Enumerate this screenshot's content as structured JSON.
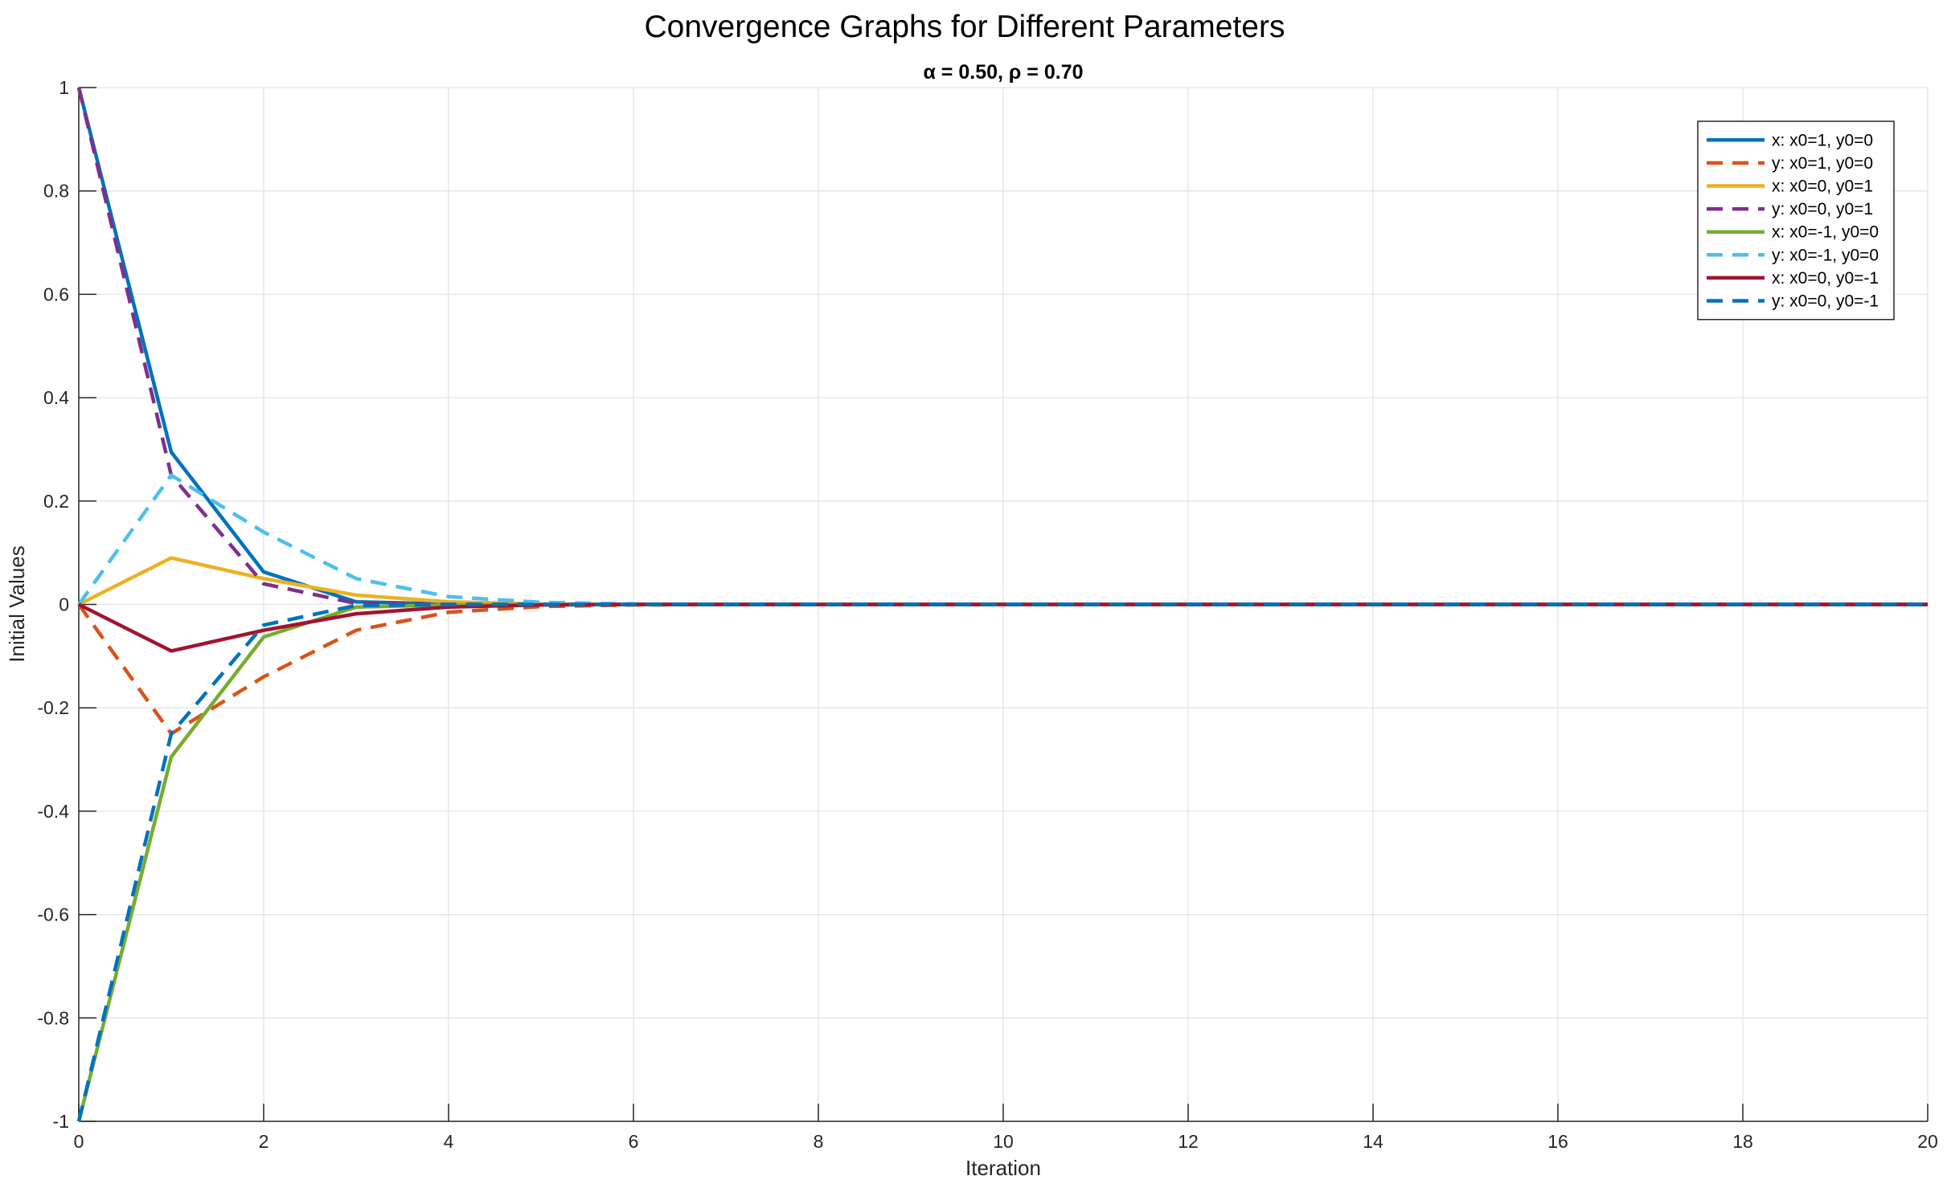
{
  "chart_data": {
    "type": "line",
    "title": "Convergence Graphs for Different Parameters",
    "subtitle": "α = 0.50, ρ = 0.70",
    "xlabel": "Iteration",
    "ylabel": "Initial Values",
    "xlim": [
      0,
      20
    ],
    "ylim": [
      -1,
      1
    ],
    "xticks": [
      0,
      2,
      4,
      6,
      8,
      10,
      12,
      14,
      16,
      18,
      20
    ],
    "yticks": [
      -1,
      -0.8,
      -0.6,
      -0.4,
      -0.2,
      0,
      0.2,
      0.4,
      0.6,
      0.8,
      1
    ],
    "grid": true,
    "legend_position": "top-right",
    "x": [
      0,
      1,
      2,
      3,
      4,
      5,
      6,
      7,
      8,
      9,
      10,
      11,
      12,
      13,
      14,
      15,
      16,
      17,
      18,
      19,
      20
    ],
    "series": [
      {
        "name": "x: x0=1, y0=0",
        "color": "#0072BD",
        "style": "solid",
        "values": [
          1,
          0.295,
          0.063,
          0.005,
          0.001,
          0,
          0,
          0,
          0,
          0,
          0,
          0,
          0,
          0,
          0,
          0,
          0,
          0,
          0,
          0,
          0
        ]
      },
      {
        "name": "y: x0=1, y0=0",
        "color": "#D95319",
        "style": "dashed",
        "values": [
          0,
          -0.25,
          -0.14,
          -0.05,
          -0.015,
          -0.004,
          -0.001,
          0,
          0,
          0,
          0,
          0,
          0,
          0,
          0,
          0,
          0,
          0,
          0,
          0,
          0
        ]
      },
      {
        "name": "x: x0=0, y0=1",
        "color": "#EDB120",
        "style": "solid",
        "values": [
          0,
          0.09,
          0.05,
          0.018,
          0.005,
          0.001,
          0,
          0,
          0,
          0,
          0,
          0,
          0,
          0,
          0,
          0,
          0,
          0,
          0,
          0,
          0
        ]
      },
      {
        "name": "y: x0=0, y0=1",
        "color": "#7E2F8E",
        "style": "dashed",
        "values": [
          1,
          0.25,
          0.04,
          0.002,
          0,
          0,
          0,
          0,
          0,
          0,
          0,
          0,
          0,
          0,
          0,
          0,
          0,
          0,
          0,
          0,
          0
        ]
      },
      {
        "name": "x: x0=-1, y0=0",
        "color": "#77AC30",
        "style": "solid",
        "values": [
          -1,
          -0.295,
          -0.063,
          -0.005,
          -0.001,
          0,
          0,
          0,
          0,
          0,
          0,
          0,
          0,
          0,
          0,
          0,
          0,
          0,
          0,
          0,
          0
        ]
      },
      {
        "name": "y: x0=-1, y0=0",
        "color": "#4DBEEE",
        "style": "dashed",
        "values": [
          0,
          0.25,
          0.14,
          0.05,
          0.015,
          0.004,
          0.001,
          0,
          0,
          0,
          0,
          0,
          0,
          0,
          0,
          0,
          0,
          0,
          0,
          0,
          0
        ]
      },
      {
        "name": "x: x0=0, y0=-1",
        "color": "#A2142F",
        "style": "solid",
        "values": [
          0,
          -0.09,
          -0.05,
          -0.018,
          -0.005,
          -0.001,
          0,
          0,
          0,
          0,
          0,
          0,
          0,
          0,
          0,
          0,
          0,
          0,
          0,
          0,
          0
        ]
      },
      {
        "name": "y: x0=0, y0=-1",
        "color": "#0072BD",
        "style": "dashed",
        "values": [
          -1,
          -0.25,
          -0.04,
          -0.002,
          0,
          0,
          0,
          0,
          0,
          0,
          0,
          0,
          0,
          0,
          0,
          0,
          0,
          0,
          0,
          0,
          0
        ]
      }
    ]
  }
}
